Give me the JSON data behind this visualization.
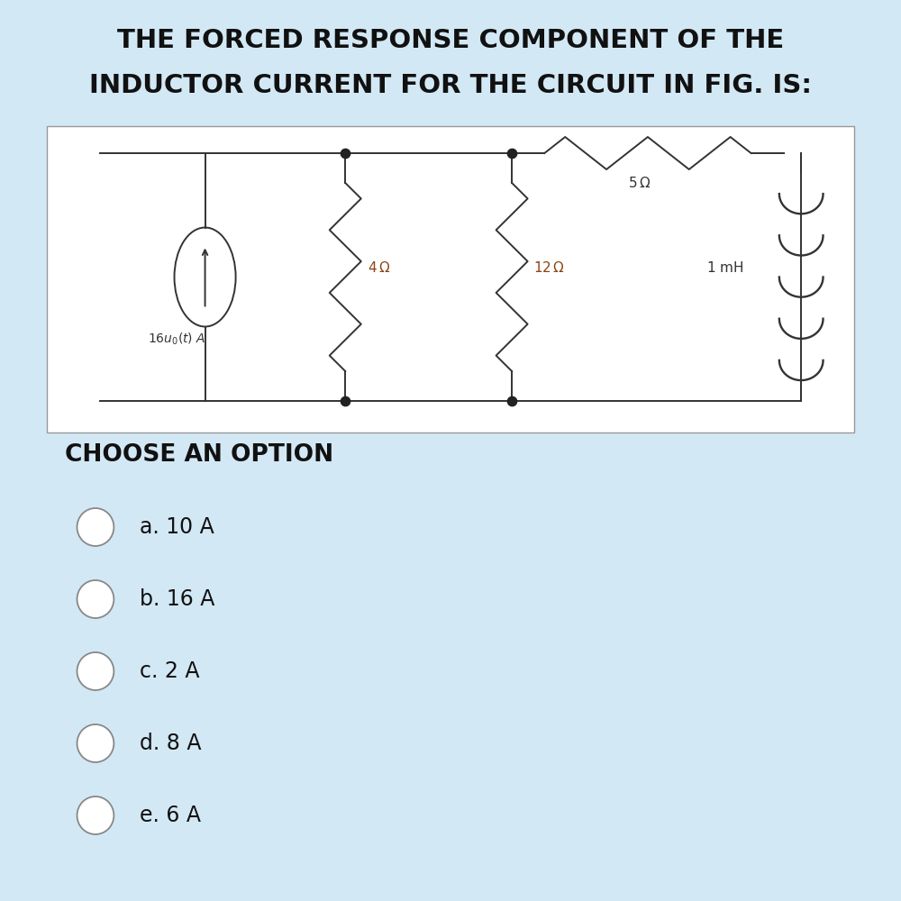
{
  "bg_color": "#d3e8f5",
  "circuit_bg": "#f5f5f5",
  "title_line1": "THE FORCED RESPONSE COMPONENT OF THE",
  "title_line2": "INDUCTOR CURRENT FOR THE CIRCUIT IN FIG. IS:",
  "title_fontsize": 21,
  "title_color": "#111111",
  "choose_label": "CHOOSE AN OPTION",
  "choose_fontsize": 19,
  "options": [
    "a. 10 A",
    "b. 16 A",
    "c. 2 A",
    "d. 8 A",
    "e. 6 A"
  ],
  "option_fontsize": 17,
  "r1_label": "4 Ω",
  "r2_label": "12 Ω",
  "r3_label": "5 Ω",
  "ind_label": "1 mH",
  "src_label": "16u_0(t) A",
  "lw": 1.4,
  "resistor_color": "#555555",
  "label_color_resis": "#8B4513",
  "label_color_black": "#333333"
}
